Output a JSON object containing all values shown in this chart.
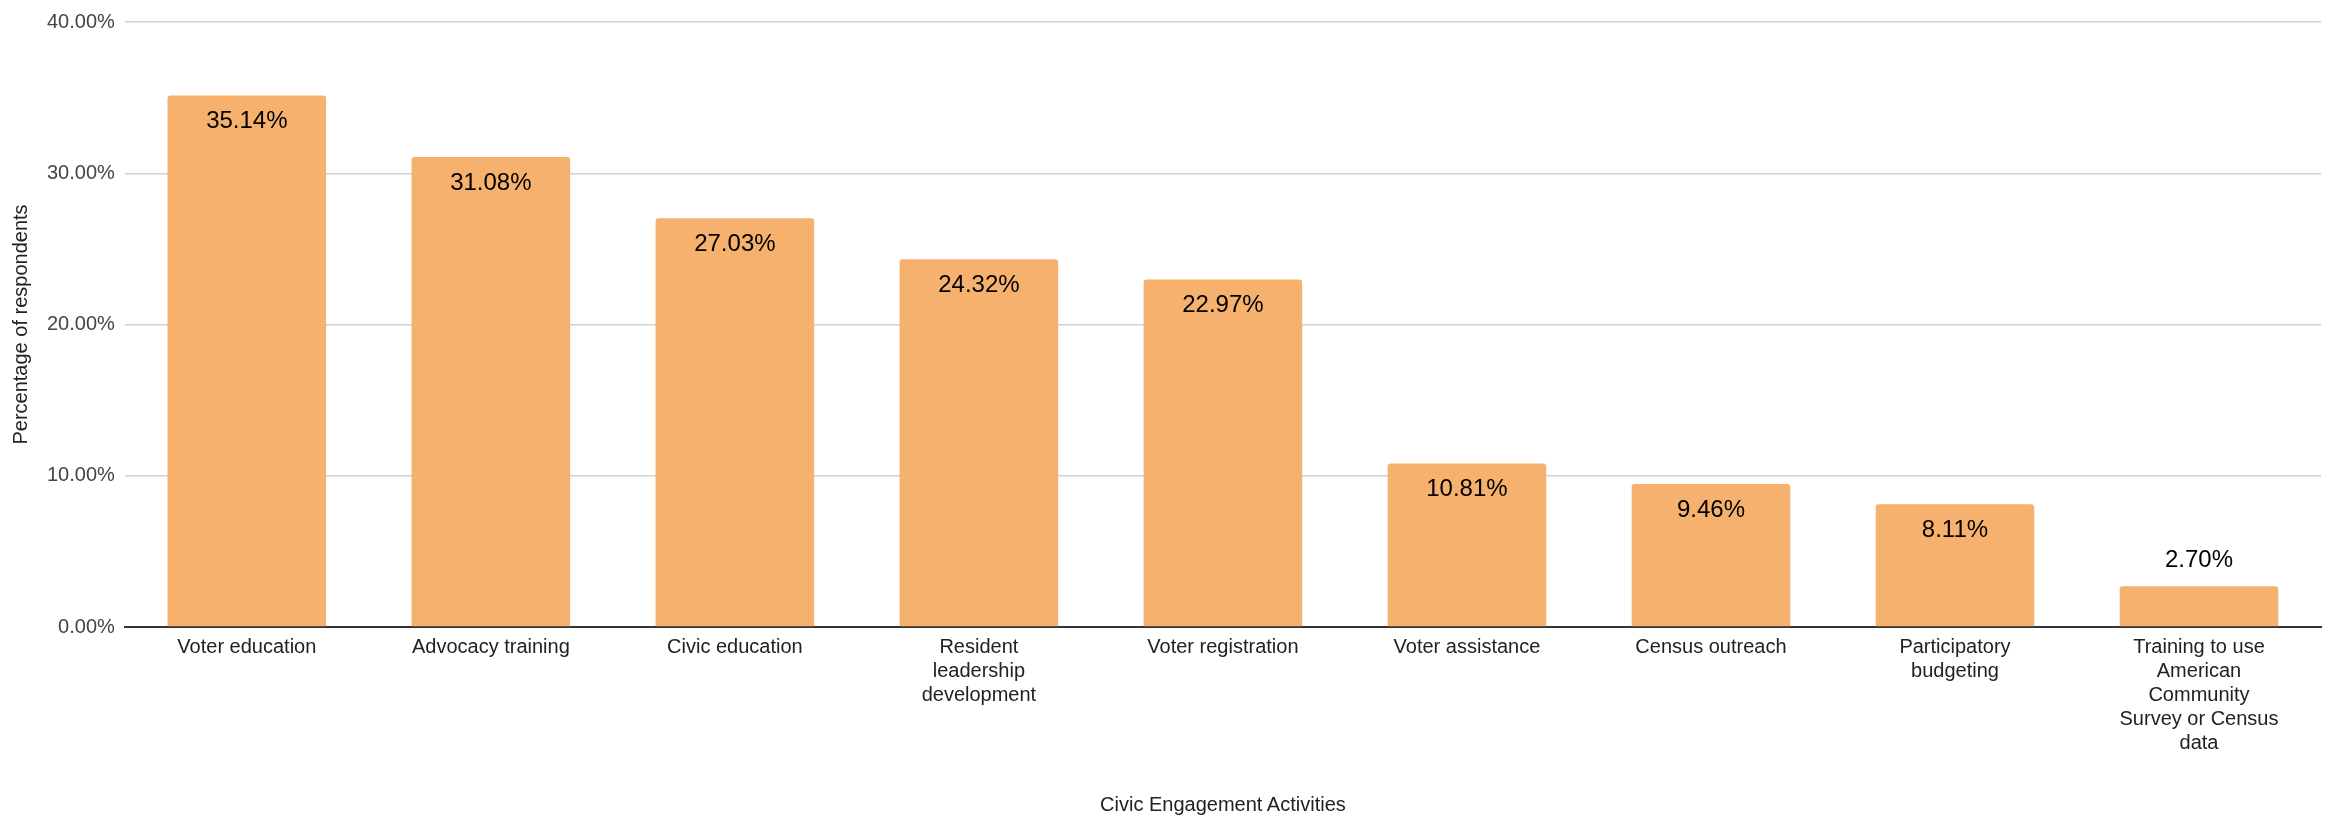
{
  "chart_data": {
    "type": "bar",
    "xlabel": "Civic Engagement Activities",
    "ylabel": "Percentage of respondents",
    "categories": [
      "Voter education",
      "Advocacy training",
      "Civic education",
      "Resident leadership development",
      "Voter registration",
      "Voter assistance",
      "Census outreach",
      "Participatory budgeting",
      "Training to use American Community Survey or Census data"
    ],
    "values": [
      35.14,
      31.08,
      27.03,
      24.32,
      22.97,
      10.81,
      9.46,
      8.11,
      2.7
    ],
    "value_labels": [
      "35.14%",
      "31.08%",
      "27.03%",
      "24.32%",
      "22.97%",
      "10.81%",
      "9.46%",
      "8.11%",
      "2.70%"
    ],
    "color": "#f5b16d",
    "ylim": [
      0,
      40
    ],
    "yticks": [
      {
        "value": 0,
        "label": "0.00%"
      },
      {
        "value": 10,
        "label": "10.00%"
      },
      {
        "value": 20,
        "label": "20.00%"
      },
      {
        "value": 30,
        "label": "30.00%"
      },
      {
        "value": 40,
        "label": "40.00%"
      }
    ],
    "grid": "y",
    "legend": false
  }
}
